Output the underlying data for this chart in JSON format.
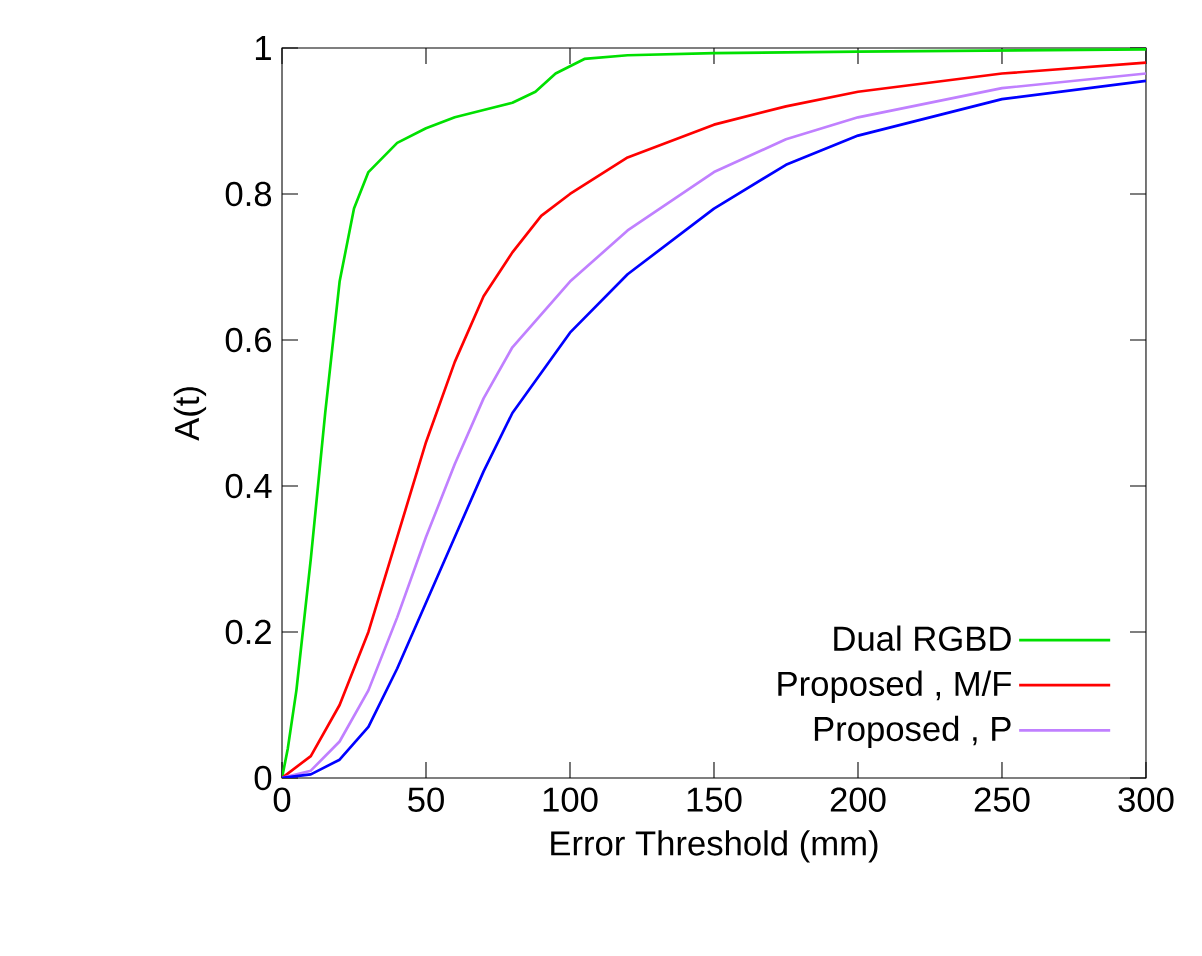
{
  "chart_data": {
    "type": "line",
    "xlabel": "Error Threshold (mm)",
    "ylabel": "A(t)",
    "xlim": [
      0,
      300
    ],
    "ylim": [
      0,
      1
    ],
    "xticks": [
      0,
      50,
      100,
      150,
      200,
      250,
      300
    ],
    "yticks": [
      0,
      0.2,
      0.4,
      0.6,
      0.8,
      1
    ],
    "grid": false,
    "legend": "bottom right",
    "marker": "none",
    "line_style": "solid",
    "series": [
      {
        "name": "Dual RGBD",
        "color": "#00e000",
        "x": [
          0,
          2,
          5,
          10,
          15,
          20,
          25,
          30,
          40,
          50,
          60,
          70,
          80,
          88,
          95,
          105,
          120,
          150,
          200,
          300
        ],
        "values": [
          0,
          0.04,
          0.12,
          0.3,
          0.5,
          0.68,
          0.78,
          0.83,
          0.87,
          0.89,
          0.905,
          0.915,
          0.925,
          0.94,
          0.965,
          0.985,
          0.99,
          0.993,
          0.995,
          0.998
        ]
      },
      {
        "name": "Proposed , M/F",
        "color": "#ff0000",
        "x": [
          0,
          10,
          20,
          30,
          40,
          50,
          60,
          70,
          80,
          90,
          100,
          120,
          150,
          175,
          200,
          250,
          300
        ],
        "values": [
          0,
          0.03,
          0.1,
          0.2,
          0.33,
          0.46,
          0.57,
          0.66,
          0.72,
          0.77,
          0.8,
          0.85,
          0.895,
          0.92,
          0.94,
          0.965,
          0.98
        ]
      },
      {
        "name": "Proposed , P",
        "color": "#c080ff",
        "x": [
          0,
          10,
          20,
          30,
          40,
          50,
          60,
          70,
          80,
          100,
          120,
          150,
          175,
          200,
          250,
          300
        ],
        "values": [
          0,
          0.01,
          0.05,
          0.12,
          0.22,
          0.33,
          0.43,
          0.52,
          0.59,
          0.68,
          0.75,
          0.83,
          0.875,
          0.905,
          0.945,
          0.965
        ]
      },
      {
        "color": "#0000ff",
        "x": [
          0,
          10,
          20,
          30,
          40,
          50,
          60,
          70,
          80,
          100,
          120,
          150,
          175,
          200,
          250,
          300
        ],
        "values": [
          0,
          0.005,
          0.025,
          0.07,
          0.15,
          0.24,
          0.33,
          0.42,
          0.5,
          0.61,
          0.69,
          0.78,
          0.84,
          0.88,
          0.93,
          0.955
        ]
      }
    ]
  }
}
